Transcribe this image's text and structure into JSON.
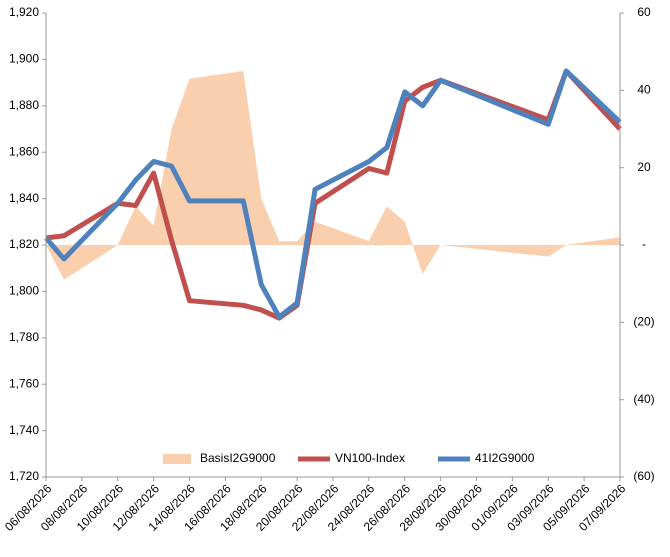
{
  "chart_data": {
    "type": "line",
    "x": [
      "06/08/2026",
      "07/08/2026",
      "10/08/2026",
      "11/08/2026",
      "12/08/2026",
      "13/08/2026",
      "14/08/2026",
      "17/08/2026",
      "18/08/2026",
      "19/08/2026",
      "20/08/2026",
      "21/08/2026",
      "24/08/2026",
      "25/08/2026",
      "26/08/2026",
      "27/08/2026",
      "28/08/2026",
      "03/09/2026",
      "04/09/2026",
      "07/09/2026"
    ],
    "series": [
      {
        "name": "BasisI2G9000",
        "type": "area",
        "axis": "y2",
        "color": "#f9cfae",
        "values": [
          0,
          -9,
          0,
          10,
          5,
          30,
          43,
          45,
          12,
          1,
          1,
          6,
          1,
          10,
          6,
          -7.5,
          0,
          -3,
          0,
          2
        ]
      },
      {
        "name": "VN100-Index",
        "type": "line",
        "color": "#c0504d",
        "values": [
          1823,
          1824,
          1838,
          1837,
          1851,
          1822,
          1796,
          1794,
          1792,
          1788.5,
          1794,
          1838,
          1853,
          1851,
          1882,
          1888,
          1891,
          1874,
          1895,
          1870
        ]
      },
      {
        "name": "41I2G9000",
        "type": "line",
        "color": "#4f81bd",
        "values": [
          1823,
          1814,
          1838,
          1848,
          1856,
          1854,
          1839,
          1839,
          1803,
          1789,
          1795,
          1844,
          1856,
          1862,
          1886,
          1880,
          1891,
          1872,
          1895,
          1873
        ]
      }
    ],
    "xlim": [
      "06/08/2026",
      "07/09/2026"
    ],
    "xticks": [
      "06/08/2026",
      "08/08/2026",
      "10/08/2026",
      "12/08/2026",
      "14/08/2026",
      "16/08/2026",
      "18/08/2026",
      "20/08/2026",
      "22/08/2026",
      "24/08/2026",
      "26/08/2026",
      "28/08/2026",
      "30/08/2026",
      "01/09/2026",
      "03/09/2026",
      "05/09/2026",
      "07/09/2026"
    ],
    "ylim": [
      1720,
      1920
    ],
    "yticks": [
      {
        "value": 1720,
        "label": "1,720"
      },
      {
        "value": 1740,
        "label": "1,740"
      },
      {
        "value": 1760,
        "label": "1,760"
      },
      {
        "value": 1780,
        "label": "1,780"
      },
      {
        "value": 1800,
        "label": "1,800"
      },
      {
        "value": 1820,
        "label": "1,820"
      },
      {
        "value": 1840,
        "label": "1,840"
      },
      {
        "value": 1860,
        "label": "1,860"
      },
      {
        "value": 1880,
        "label": "1,880"
      },
      {
        "value": 1900,
        "label": "1,900"
      },
      {
        "value": 1920,
        "label": "1,920"
      }
    ],
    "y2lim": [
      -60,
      60
    ],
    "y2ticks": [
      60,
      40,
      20,
      {
        "value": 0,
        "label": "-"
      },
      {
        "value": -20,
        "label": "(20)"
      },
      {
        "value": -40,
        "label": "(40)"
      },
      {
        "value": -60,
        "label": "(60)"
      }
    ],
    "grid": false,
    "legend": "bottom"
  }
}
